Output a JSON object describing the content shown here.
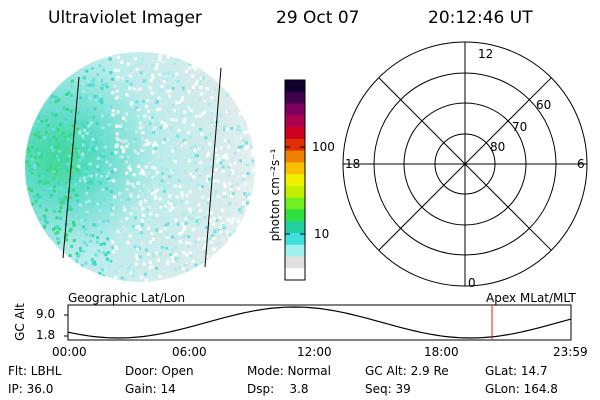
{
  "header": {
    "title": "Ultraviolet Imager",
    "date": "29 Oct 07",
    "time": "20:12:46 UT"
  },
  "colorbar": {
    "unit_label": "photon cm⁻²s⁻¹",
    "ticks": [
      "100",
      "10"
    ],
    "colors": [
      "#ffffff",
      "#e0e0e0",
      "#a0f0f0",
      "#40e0e0",
      "#20d0a0",
      "#30e040",
      "#70f020",
      "#c0f000",
      "#f0f000",
      "#f8c000",
      "#f08000",
      "#e03000",
      "#d00020",
      "#b00050",
      "#800060",
      "#400050",
      "#100030"
    ]
  },
  "polar_plot": {
    "mlt_labels": {
      "top": "12",
      "left": "18",
      "right": "6",
      "bottom": "0"
    },
    "lat_labels": [
      "60",
      "70",
      "80"
    ]
  },
  "timeline": {
    "y_axis_label": "GC Alt",
    "y_ticks": [
      "9.0",
      "1.8"
    ],
    "left_caption": "Geographic Lat/Lon",
    "right_caption": "Apex MLat/MLT",
    "x_ticks": [
      "00:00",
      "06:00",
      "12:00",
      "18:00",
      "23:59"
    ],
    "current_time_fraction": 0.843
  },
  "info": {
    "row1": [
      "Flt: LBHL",
      "Door: Open",
      "Mode: Normal",
      "GC Alt: 2.9 Re",
      "GLat: 14.7"
    ],
    "row2": [
      "IP: 36.0",
      "Gain: 14",
      "Dsp:    3.8",
      "Seq: 39",
      "GLon: 164.8"
    ]
  }
}
